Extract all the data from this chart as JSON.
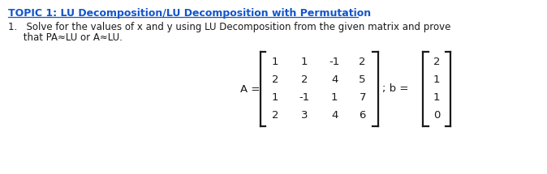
{
  "title": "TOPIC 1: LU Decomposition/LU Decomposition with Permutation",
  "title_color": "#1155CC",
  "title_fontsize": 9.0,
  "body_line1": "1.   Solve for the values of x and y using LU Decomposition from the given matrix and prove",
  "body_line2": "     that PA≈LU or A≈LU.",
  "body_fontsize": 8.5,
  "A_matrix": [
    [
      "1",
      "1",
      "-1",
      "2"
    ],
    [
      "2",
      "2",
      "4",
      "5"
    ],
    [
      "1",
      "-1",
      "1",
      "7"
    ],
    [
      "2",
      "3",
      "4",
      "6"
    ]
  ],
  "b_vector": [
    "2",
    "1",
    "1",
    "0"
  ],
  "background_color": "#ffffff",
  "text_color": "#1a1a1a",
  "matrix_fontsize": 9.5,
  "bracket_lw": 1.6
}
